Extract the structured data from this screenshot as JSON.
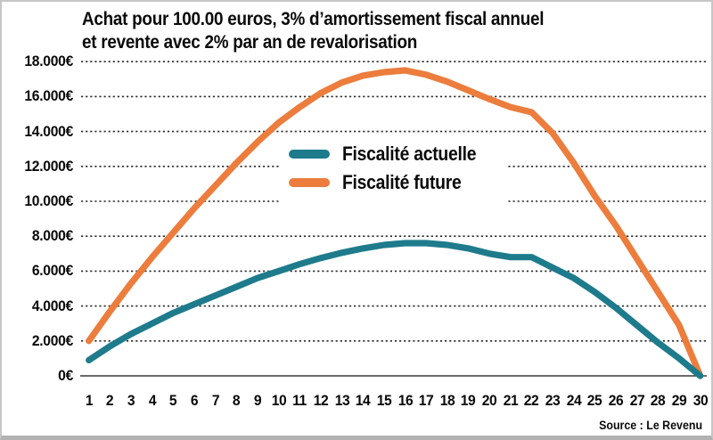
{
  "title": {
    "line1": "Achat pour 100.00 euros, 3% d’amortissement fiscal annuel",
    "line2": "et revente avec 2% par an de revalorisation"
  },
  "source": "Source : Le Revenu",
  "colors": {
    "actuelle": "#1e7b8c",
    "future": "#ec7d3d",
    "grid": "#2a2a2a",
    "axis": "#3a3a3a"
  },
  "legend": {
    "entries": [
      {
        "label": "Fiscalité actuelle",
        "color": "#1e7b8c"
      },
      {
        "label": "Fiscalité future",
        "color": "#ec7d3d"
      }
    ]
  },
  "chart_data": {
    "type": "line",
    "title": "Achat pour 100.00 euros, 3% d’amortissement fiscal annuel et revente avec 2% par an de revalorisation",
    "x": [
      1,
      2,
      3,
      4,
      5,
      6,
      7,
      8,
      9,
      10,
      11,
      12,
      13,
      14,
      15,
      16,
      17,
      18,
      19,
      20,
      21,
      22,
      23,
      24,
      25,
      26,
      27,
      28,
      29,
      30
    ],
    "series": [
      {
        "name": "Fiscalité actuelle",
        "color": "#1e7b8c",
        "values": [
          900,
          1700,
          2400,
          3000,
          3600,
          4100,
          4600,
          5100,
          5600,
          6000,
          6400,
          6750,
          7050,
          7300,
          7500,
          7600,
          7600,
          7500,
          7300,
          7000,
          6800,
          6800,
          6200,
          5600,
          4800,
          3900,
          2900,
          1900,
          1000,
          0
        ]
      },
      {
        "name": "Fiscalité future",
        "color": "#ec7d3d",
        "values": [
          2000,
          3700,
          5300,
          6800,
          8200,
          9600,
          10900,
          12200,
          13400,
          14500,
          15400,
          16200,
          16800,
          17200,
          17400,
          17500,
          17250,
          16850,
          16350,
          15850,
          15400,
          15100,
          13900,
          12200,
          10300,
          8600,
          6700,
          4800,
          2900,
          0
        ]
      }
    ],
    "yticks": [
      {
        "value": 0,
        "label": "0€"
      },
      {
        "value": 2000,
        "label": "2.000€"
      },
      {
        "value": 4000,
        "label": "4.000€"
      },
      {
        "value": 6000,
        "label": "6.000€"
      },
      {
        "value": 8000,
        "label": "8.000€"
      },
      {
        "value": 10000,
        "label": "10.000€"
      },
      {
        "value": 12000,
        "label": "12.000€"
      },
      {
        "value": 14000,
        "label": "14.000€"
      },
      {
        "value": 16000,
        "label": "16.000€"
      },
      {
        "value": 18000,
        "label": "18.000€"
      }
    ],
    "ylim": [
      0,
      18000
    ],
    "xlim": [
      1,
      30
    ],
    "grid": "horizontal-dotted",
    "legend_position": "center"
  }
}
